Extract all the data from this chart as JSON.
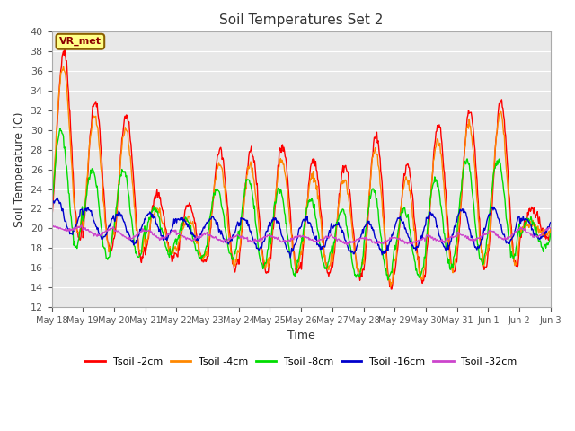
{
  "title": "Soil Temperatures Set 2",
  "xlabel": "Time",
  "ylabel": "Soil Temperature (C)",
  "ylim": [
    12,
    40
  ],
  "yticks": [
    12,
    14,
    16,
    18,
    20,
    22,
    24,
    26,
    28,
    30,
    32,
    34,
    36,
    38,
    40
  ],
  "fig_bg_color": "#ffffff",
  "plot_bg_color": "#e8e8e8",
  "grid_color": "#ffffff",
  "series_colors": [
    "#ff0000",
    "#ff8800",
    "#00dd00",
    "#0000cc",
    "#cc44cc"
  ],
  "series_labels": [
    "Tsoil -2cm",
    "Tsoil -4cm",
    "Tsoil -8cm",
    "Tsoil -16cm",
    "Tsoil -32cm"
  ],
  "annotation_text": "VR_met",
  "annotation_color": "#8b0000",
  "annotation_bg": "#ffff88",
  "annotation_edge": "#8b6000",
  "num_days": 16,
  "points_per_day": 48,
  "start_day": 18,
  "start_month": "May"
}
